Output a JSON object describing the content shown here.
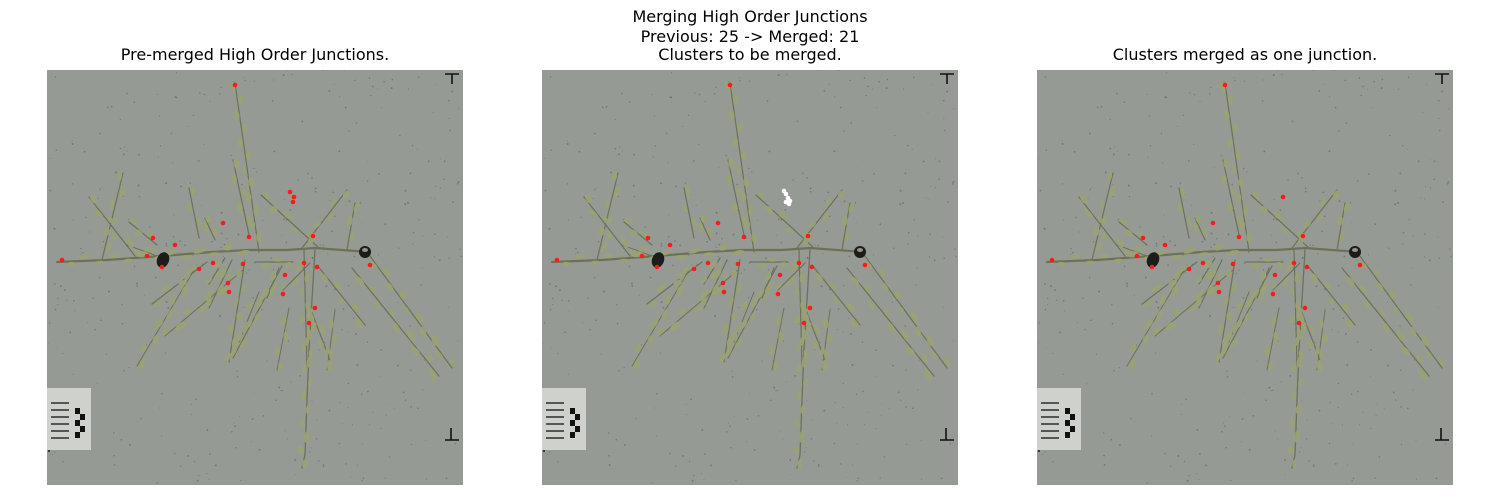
{
  "figure": {
    "suptitle_line1": "Merging High Order Junctions",
    "suptitle_line2": "Previous: 25 -> Merged: 21"
  },
  "panels": [
    {
      "title": "Pre-merged High Order Junctions."
    },
    {
      "title": "Clusters to be merged."
    },
    {
      "title": "Clusters merged as one junction."
    }
  ],
  "colors": {
    "background": "#959a95",
    "plant": "#9aa274",
    "stem": "#6d7257",
    "junction_marker": "#ff1a1a",
    "cluster_marker": "#ffffff"
  }
}
